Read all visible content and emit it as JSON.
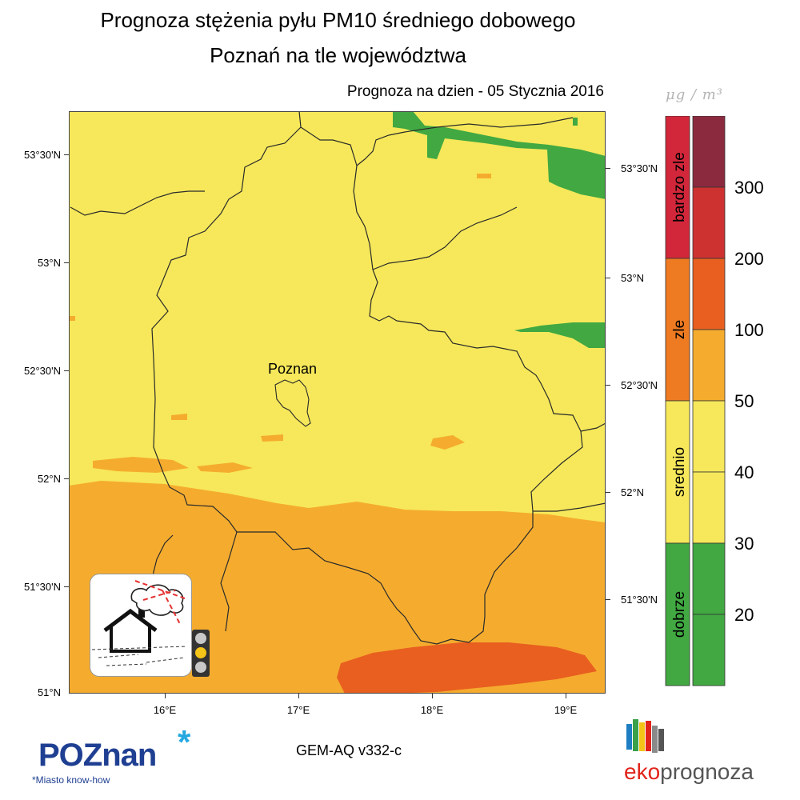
{
  "header": {
    "title": "Prognoza stężenia pyłu PM10 średniego dobowego",
    "subtitle": "Poznań na tle województwa",
    "date_label": "Prognoza na dzien -  05 Stycznia 2016",
    "unit": "μg / m³"
  },
  "map": {
    "lat_labels_left": [
      "53°30'N",
      "53°N",
      "52°30'N",
      "52°N",
      "51°30'N",
      "51°N"
    ],
    "lat_labels_right": [
      "53°30'N",
      "53°N",
      "52°30'N",
      "52°N",
      "51°30'N"
    ],
    "lon_labels": [
      "16°E",
      "17°E",
      "18°E",
      "19°E"
    ],
    "city_label": "Poznan",
    "colors": {
      "background_yellow": "#f6e85a",
      "green": "#41a842",
      "orange": "#f5ac2e",
      "dark_orange": "#e85f20",
      "border": "#2a2a2a"
    }
  },
  "legend": {
    "categories": [
      {
        "label": "bardzo zle",
        "color": "#d2273a"
      },
      {
        "label": "zle",
        "color": "#ee7a21"
      },
      {
        "label": "srednio",
        "color": "#f6e85a"
      },
      {
        "label": "dobrze",
        "color": "#41a842"
      }
    ],
    "levels": [
      {
        "color": "#8b2a3f"
      },
      {
        "color": "#cd3231"
      },
      {
        "color": "#e85f20"
      },
      {
        "color": "#f5ac2e"
      },
      {
        "color": "#f6e85a"
      },
      {
        "color": "#f6e85a"
      },
      {
        "color": "#41a842"
      },
      {
        "color": "#41a842"
      }
    ],
    "tick_labels": [
      "300",
      "200",
      "100",
      "50",
      "40",
      "30",
      "20"
    ]
  },
  "icons": {
    "pollution_house": "house-smog-icon",
    "traffic_light": "traffic-light-icon"
  },
  "footer": {
    "model": "GEM-AQ v332-c",
    "poznan_logo": "POZnan",
    "poznan_tagline": "*Miasto know-how",
    "eko_logo_a": "eko",
    "eko_logo_b": "prognoza"
  }
}
